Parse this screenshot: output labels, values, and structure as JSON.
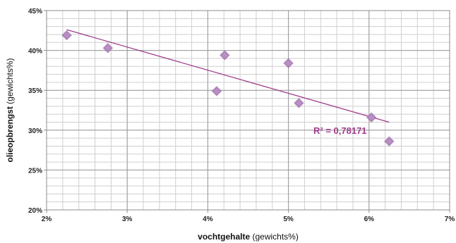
{
  "chart_data": {
    "type": "scatter",
    "xlabel_bold": "vochtgehalte",
    "xlabel_rest": " (gewichts%)",
    "ylabel_bold": "olieopbrengst",
    "ylabel_rest": " (gewichts%)",
    "xlim": [
      0.02,
      0.07
    ],
    "ylim": [
      0.2,
      0.45
    ],
    "x_ticks": [
      {
        "value": 0.02,
        "label": "2%"
      },
      {
        "value": 0.03,
        "label": "3%"
      },
      {
        "value": 0.04,
        "label": "4%"
      },
      {
        "value": 0.05,
        "label": "5%"
      },
      {
        "value": 0.06,
        "label": "6%"
      },
      {
        "value": 0.07,
        "label": "7%"
      }
    ],
    "y_ticks": [
      {
        "value": 0.2,
        "label": "20%"
      },
      {
        "value": 0.25,
        "label": "25%"
      },
      {
        "value": 0.3,
        "label": "30%"
      },
      {
        "value": 0.35,
        "label": "35%"
      },
      {
        "value": 0.4,
        "label": "40%"
      },
      {
        "value": 0.45,
        "label": "45%"
      }
    ],
    "x_minor_step": 0.002,
    "y_minor_step": 0.01,
    "grid": true,
    "points": [
      {
        "x": 0.0225,
        "y": 0.419
      },
      {
        "x": 0.0276,
        "y": 0.403
      },
      {
        "x": 0.0411,
        "y": 0.349
      },
      {
        "x": 0.0421,
        "y": 0.394
      },
      {
        "x": 0.05,
        "y": 0.384
      },
      {
        "x": 0.0513,
        "y": 0.334
      },
      {
        "x": 0.0603,
        "y": 0.316
      },
      {
        "x": 0.0625,
        "y": 0.286
      }
    ],
    "trendline": {
      "x": [
        0.0225,
        0.0625
      ],
      "y": [
        0.426,
        0.31
      ],
      "label": "R² = 0,78171"
    },
    "colors": {
      "marker": "#9a6aa8",
      "marker_fill": "#b98fc4",
      "trendline": "#a03d8c",
      "r2_label": "#a03d8c",
      "major_grid": "#9a9a9a",
      "minor_grid": "#cfcfcf"
    }
  }
}
